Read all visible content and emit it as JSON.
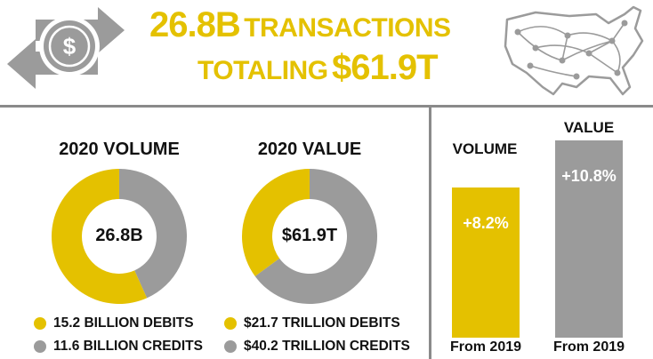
{
  "colors": {
    "accent": "#E4C100",
    "gray": "#9B9B9B",
    "dark_gray": "#808080",
    "divider": "#8a8a8a",
    "text": "#111111"
  },
  "icons": [
    "dollar-icon",
    "exchange-arrows-icon",
    "us-network-map-icon"
  ],
  "headline": {
    "line1_number": "26.8B",
    "line1_text": "TRANSACTIONS",
    "line2_text": "TOTALING",
    "line2_number": "$61.9T"
  },
  "chart_data": [
    {
      "type": "pie",
      "title": "2020 VOLUME",
      "center_label": "26.8B",
      "slices": [
        {
          "label": "15.2 BILLION DEBITS",
          "value": 15.2,
          "color": "#E4C100"
        },
        {
          "label": "11.6 BILLION CREDITS",
          "value": 11.6,
          "color": "#9B9B9B"
        }
      ]
    },
    {
      "type": "pie",
      "title": "2020 VALUE",
      "center_label": "$61.9T",
      "slices": [
        {
          "label": "$21.7 TRILLION DEBITS",
          "value": 21.7,
          "color": "#E4C100"
        },
        {
          "label": "$40.2 TRILLION CREDITS",
          "value": 40.2,
          "color": "#9B9B9B"
        }
      ]
    },
    {
      "type": "bar",
      "categories": [
        "VOLUME",
        "VALUE"
      ],
      "values": [
        8.2,
        10.8
      ],
      "data_labels": [
        "+8.2%",
        "+10.8%"
      ],
      "category_sublabels": [
        "From 2019",
        "From 2019"
      ],
      "colors": [
        "#E4C100",
        "#9B9B9B"
      ],
      "ylim": [
        0,
        10.8
      ]
    }
  ]
}
